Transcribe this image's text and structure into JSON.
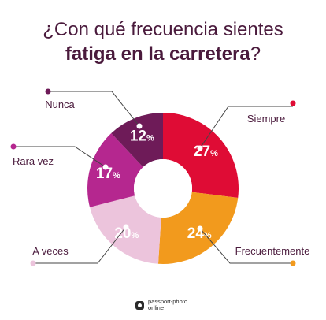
{
  "title": {
    "line1": "¿Con qué frecuencia sientes",
    "line2_bold": "fatiga en la carretera",
    "line2_end": "?"
  },
  "chart_data": {
    "type": "pie",
    "donut": true,
    "slices": [
      {
        "label": "Siempre",
        "value": 27,
        "pct_text": "27",
        "color": "#df0c35"
      },
      {
        "label": "Frecuentemente",
        "value": 24,
        "pct_text": "24",
        "color": "#f29a1d"
      },
      {
        "label": "A veces",
        "value": 20,
        "pct_text": "20",
        "color": "#ecc4dc"
      },
      {
        "label": "Rara vez",
        "value": 17,
        "pct_text": "17",
        "color": "#b5278f"
      },
      {
        "label": "Nunca",
        "value": 12,
        "pct_text": "12",
        "color": "#6e1b58"
      }
    ],
    "percent_symbol": "%"
  },
  "brand": {
    "line1": "passport-photo",
    "line2": "online"
  }
}
